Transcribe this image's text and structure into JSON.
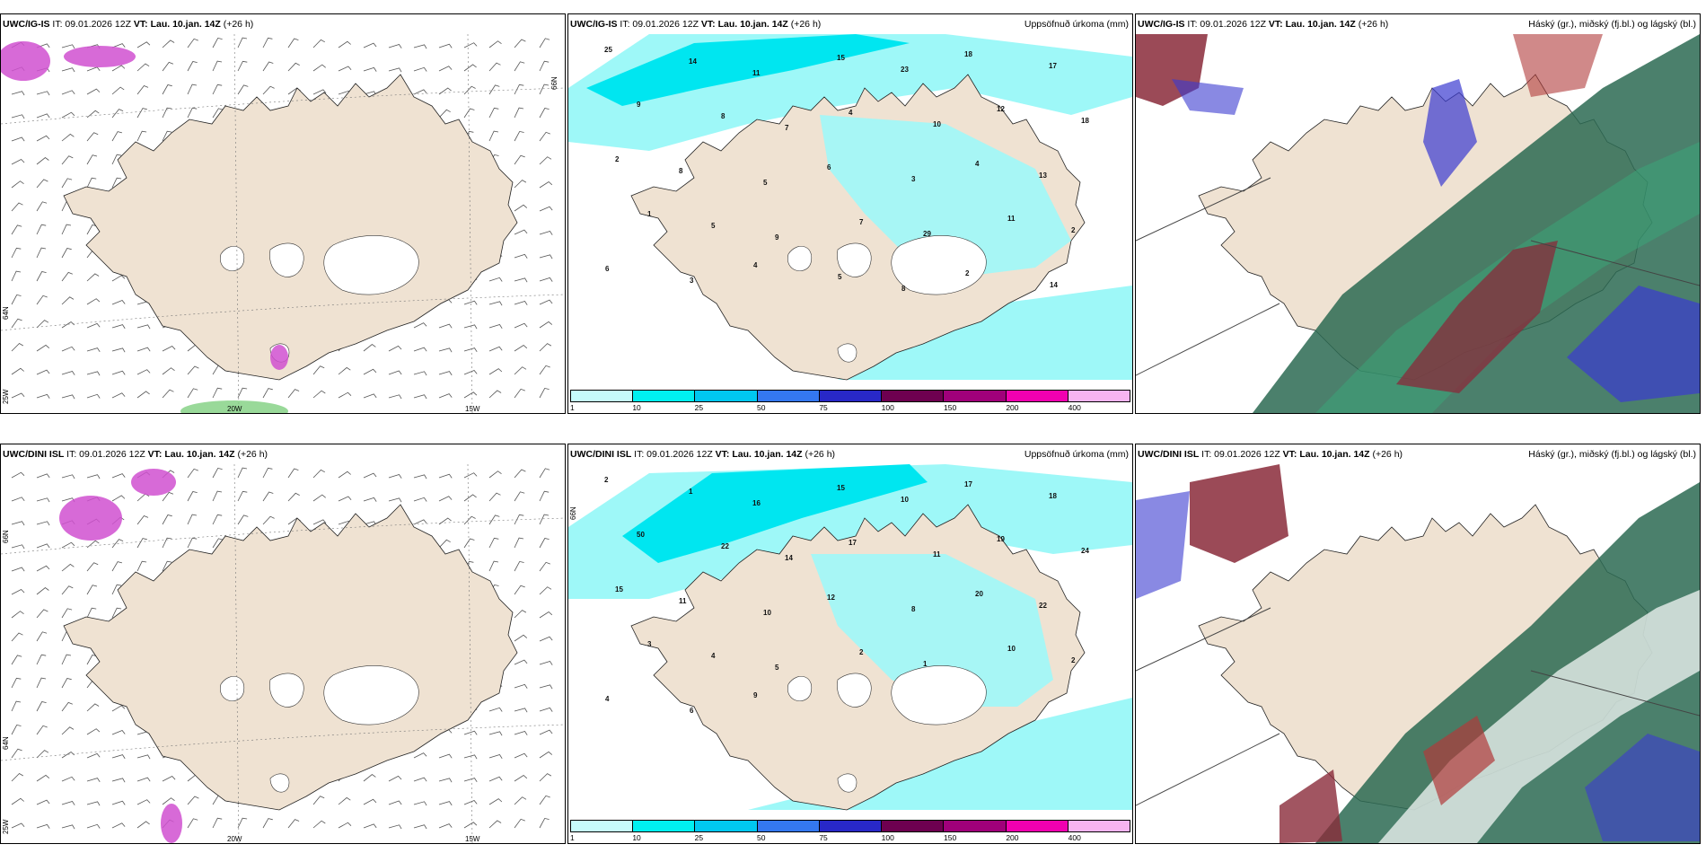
{
  "panels": [
    {
      "model": "UWC/IG-IS",
      "it": "IT: 09.01.2026 12Z",
      "vt": "VT: Lau. 10.jan. 14Z",
      "lead": "(+26 h)",
      "right": ""
    },
    {
      "model": "UWC/IG-IS",
      "it": "IT: 09.01.2026 12Z",
      "vt": "VT: Lau. 10.jan. 14Z",
      "lead": "(+26 h)",
      "right": "Uppsöfnuð úrkoma (mm)"
    },
    {
      "model": "UWC/IG-IS",
      "it": "IT: 09.01.2026 12Z",
      "vt": "VT: Lau. 10.jan. 14Z",
      "lead": "(+26 h)",
      "right": "Háský (gr.), miðský (fj.bl.) og lágský (bl.)"
    },
    {
      "model": "UWC/DINI ISL",
      "it": "IT: 09.01.2026 12Z",
      "vt": "VT: Lau. 10.jan. 14Z",
      "lead": "(+26 h)",
      "right": ""
    },
    {
      "model": "UWC/DINI ISL",
      "it": "IT: 09.01.2026 12Z",
      "vt": "VT: Lau. 10.jan. 14Z",
      "lead": "(+26 h)",
      "right": "Uppsöfnuð úrkoma (mm)"
    },
    {
      "model": "UWC/DINI ISL",
      "it": "IT: 09.01.2026 12Z",
      "vt": "VT: Lau. 10.jan. 14Z",
      "lead": "(+26 h)",
      "right": "Háský (gr.), miðský (fj.bl.) og lágský (bl.)"
    }
  ],
  "grid_labels": {
    "lat_66": "66N",
    "lat_64": "64N",
    "lon_25": "25W",
    "lon_20": "20W",
    "lon_15": "15W"
  },
  "colorbar": {
    "labels": [
      "1",
      "10",
      "25",
      "50",
      "75",
      "100",
      "150",
      "200",
      "400"
    ],
    "colors": [
      "#c6fbfb",
      "#00f0f0",
      "#00c8f0",
      "#3478f0",
      "#2828c8",
      "#6e0050",
      "#a0007a",
      "#f000b0",
      "#f7b4f0"
    ]
  },
  "precip_values_top": [
    "25",
    "14",
    "11",
    "15",
    "23",
    "18",
    "17",
    "9",
    "8",
    "7",
    "4",
    "10",
    "12",
    "18",
    "2",
    "8",
    "5",
    "6",
    "3",
    "4",
    "13",
    "1",
    "5",
    "9",
    "7",
    "29",
    "11",
    "2",
    "6",
    "3",
    "4",
    "5",
    "8",
    "2",
    "14"
  ],
  "precip_values_bottom": [
    "2",
    "1",
    "16",
    "15",
    "10",
    "17",
    "18",
    "50",
    "22",
    "14",
    "17",
    "11",
    "19",
    "24",
    "15",
    "11",
    "10",
    "12",
    "8",
    "20",
    "22",
    "3",
    "4",
    "5",
    "2",
    "1",
    "10",
    "2",
    "4",
    "6",
    "9"
  ],
  "colors": {
    "land": "#efe2d2",
    "sea_precip": "#9ef8f8",
    "precip_mid": "#00e6f0",
    "wind": "#555555",
    "cloud_high": "#2b6a52",
    "cloud_mid": "#8a2a3a",
    "cloud_low": "#3b3bd0"
  }
}
